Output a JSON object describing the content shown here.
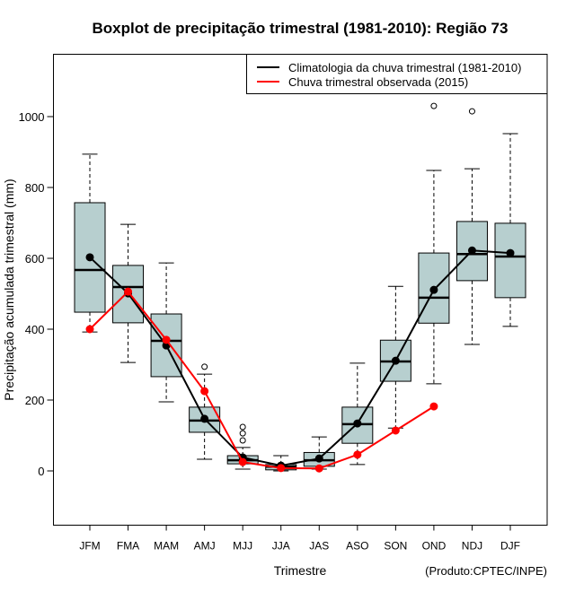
{
  "chart_data": {
    "type": "boxplot",
    "title": "Boxplot de precipitação trimestral (1981-2010): Região 73",
    "xlabel": "Trimestre",
    "ylabel": "Precipitação acumulada trimestral (mm)",
    "credit": "(Produto:CPTEC/INPE)",
    "ylim": [
      -150,
      1150
    ],
    "yticks": [
      0,
      200,
      400,
      600,
      800,
      1000
    ],
    "grid": false,
    "legend_position": "top-right",
    "box_color": "#b7cfcf",
    "categories": [
      "JFM",
      "FMA",
      "MAM",
      "AMJ",
      "MJJ",
      "JJA",
      "JAS",
      "ASO",
      "SON",
      "OND",
      "NDJ",
      "DJF"
    ],
    "boxes": [
      {
        "whisker_low": 392,
        "q1": 448,
        "median": 567,
        "q3": 757,
        "whisker_high": 894,
        "outliers": []
      },
      {
        "whisker_low": 306,
        "q1": 418,
        "median": 519,
        "q3": 580,
        "whisker_high": 696,
        "outliers": []
      },
      {
        "whisker_low": 195,
        "q1": 266,
        "median": 367,
        "q3": 443,
        "whisker_high": 587,
        "outliers": []
      },
      {
        "whisker_low": 33,
        "q1": 109,
        "median": 142,
        "q3": 180,
        "whisker_high": 273,
        "outliers": [
          294
        ]
      },
      {
        "whisker_low": 5,
        "q1": 20,
        "median": 30,
        "q3": 43,
        "whisker_high": 66,
        "outliers": [
          86,
          106,
          124
        ]
      },
      {
        "whisker_low": 0,
        "q1": 3,
        "median": 12,
        "q3": 18,
        "whisker_high": 43,
        "outliers": []
      },
      {
        "whisker_low": 5,
        "q1": 13,
        "median": 30,
        "q3": 52,
        "whisker_high": 96,
        "outliers": []
      },
      {
        "whisker_low": 18,
        "q1": 78,
        "median": 132,
        "q3": 180,
        "whisker_high": 304,
        "outliers": []
      },
      {
        "whisker_low": 121,
        "q1": 253,
        "median": 309,
        "q3": 369,
        "whisker_high": 521,
        "outliers": []
      },
      {
        "whisker_low": 246,
        "q1": 417,
        "median": 489,
        "q3": 615,
        "whisker_high": 848,
        "outliers": [
          1030
        ]
      },
      {
        "whisker_low": 357,
        "q1": 537,
        "median": 612,
        "q3": 704,
        "whisker_high": 853,
        "outliers": [
          1015
        ]
      },
      {
        "whisker_low": 408,
        "q1": 489,
        "median": 605,
        "q3": 699,
        "whisker_high": 952,
        "outliers": []
      }
    ],
    "series": [
      {
        "name": "Climatologia da chuva trimestral (1981-2010)",
        "color": "#000000",
        "values": [
          603,
          501,
          354,
          147,
          38,
          15,
          35,
          134,
          311,
          511,
          622,
          615
        ]
      },
      {
        "name": "Chuva trimestral observada (2015)",
        "color": "#ff0000",
        "values": [
          400,
          506,
          370,
          225,
          25,
          8,
          7,
          46,
          114,
          182,
          null,
          null
        ]
      }
    ]
  }
}
